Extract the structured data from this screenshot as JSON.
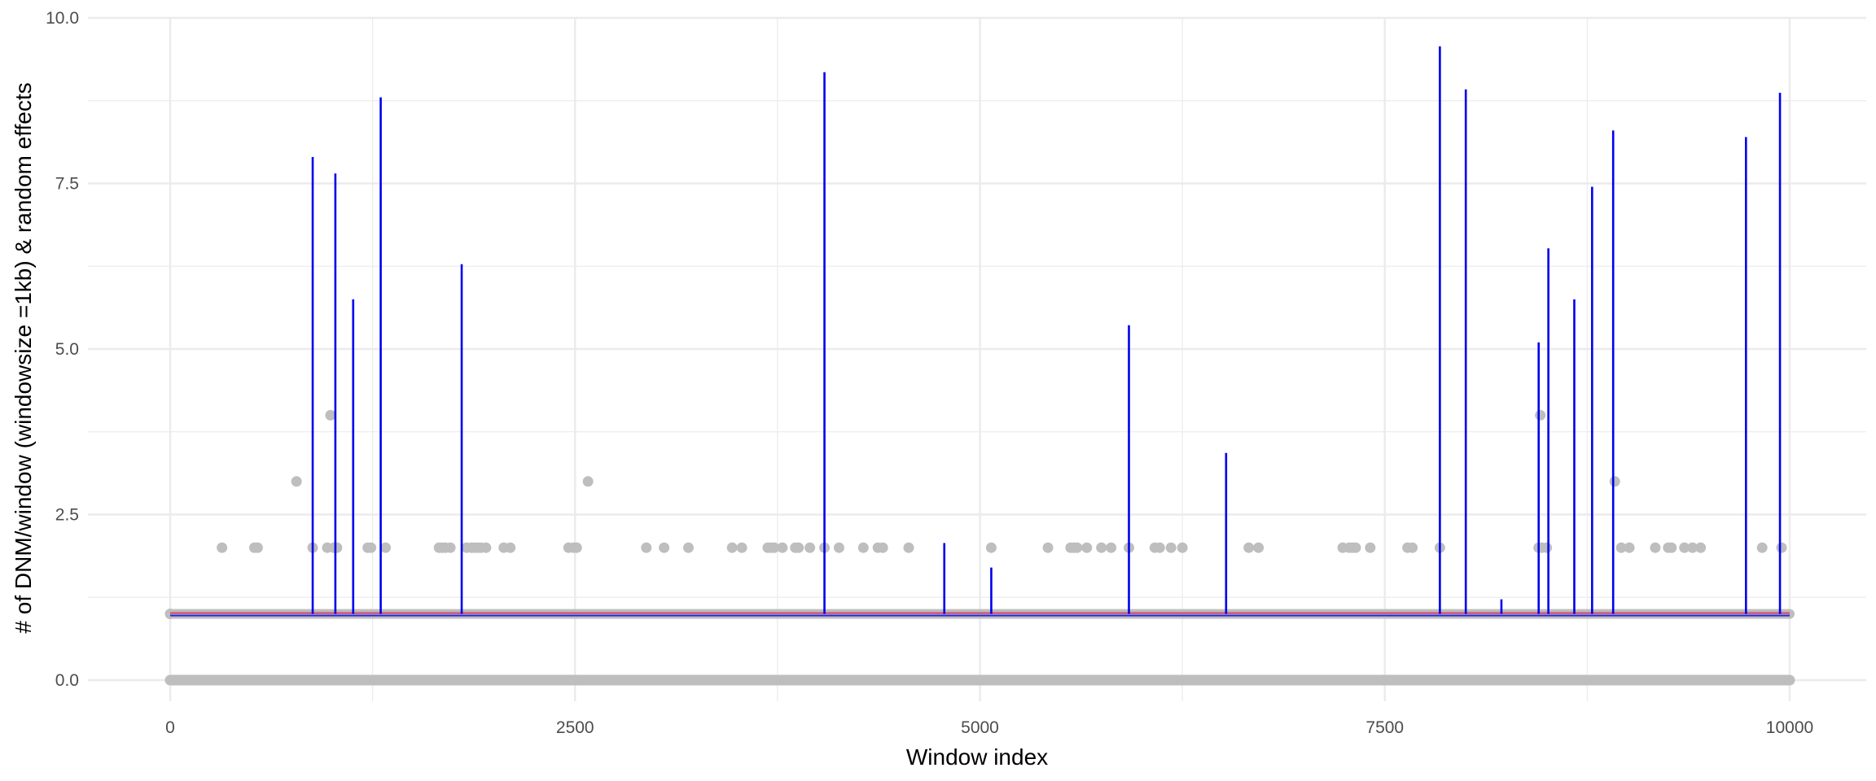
{
  "chart_data": {
    "type": "scatter",
    "title": "",
    "xlabel": "Window index",
    "ylabel": "# of DNM/window (windowsize =1kb) & random effects",
    "xlim": [
      -500,
      10500
    ],
    "ylim": [
      -0.45,
      10.0
    ],
    "x_ticks": [
      0,
      2500,
      5000,
      7500,
      10000
    ],
    "x_tick_labels": [
      "0",
      "2500",
      "5000",
      "7500",
      "10000"
    ],
    "y_ticks": [
      0,
      2.5,
      5,
      7.5,
      10
    ],
    "y_tick_labels": [
      "0.0",
      "2.5",
      "5.0",
      "7.5",
      "10.0"
    ],
    "grid": true,
    "legend": "none",
    "colors": {
      "points": "#bebebe",
      "random_effect_spikes": "#0000ee",
      "baseline_line": "#d62d5a",
      "grid": "#ebebeb",
      "background": "#ffffff"
    },
    "series": [
      {
        "type": "scatter",
        "note_values": "observed DNM counts per window (grey points); nonzero windows listed",
        "x": [
          0,
          320,
          520,
          540,
          780,
          880,
          970,
          990,
          1010,
          1030,
          1220,
          1240,
          1330,
          1660,
          1680,
          1700,
          1730,
          1830,
          1860,
          1880,
          1900,
          1920,
          1950,
          2060,
          2100,
          2460,
          2490,
          2510,
          2580,
          2940,
          3050,
          3200,
          3470,
          3530,
          3690,
          3710,
          3730,
          3780,
          3860,
          3880,
          3950,
          4040,
          4130,
          4280,
          4370,
          4400,
          4560,
          5070,
          5420,
          5560,
          5580,
          5600,
          5660,
          5750,
          5810,
          5920,
          6080,
          6110,
          6180,
          6250,
          6660,
          6720,
          7240,
          7280,
          7300,
          7320,
          7410,
          7640,
          7670,
          7840,
          8450,
          8470,
          8500,
          8460,
          8920,
          8960,
          9010,
          9170,
          9250,
          9270,
          9350,
          9400,
          9450,
          9830,
          9950
        ],
        "y": [
          1,
          2,
          2,
          2,
          3,
          2,
          2,
          4,
          2,
          2,
          2,
          2,
          2,
          2,
          2,
          2,
          2,
          2,
          2,
          2,
          2,
          2,
          2,
          2,
          2,
          2,
          2,
          2,
          3,
          2,
          2,
          2,
          2,
          2,
          2,
          2,
          2,
          2,
          2,
          2,
          2,
          2,
          2,
          2,
          2,
          2,
          2,
          2,
          2,
          2,
          2,
          2,
          2,
          2,
          2,
          2,
          2,
          2,
          2,
          2,
          2,
          2,
          2,
          2,
          2,
          2,
          2,
          2,
          2,
          2,
          2,
          2,
          2,
          4,
          3,
          2,
          2,
          2,
          2,
          2,
          2,
          2,
          2,
          2,
          2
        ]
      },
      {
        "type": "spikes",
        "note_values": "random effects estimate per window (blue vertical lines from baseline 1.0)",
        "x": [
          880,
          1020,
          1130,
          1300,
          1800,
          4040,
          4780,
          5070,
          5920,
          6520,
          7840,
          8000,
          8220,
          8450,
          8510,
          8670,
          8780,
          8910,
          9730,
          9940
        ],
        "y": [
          7.9,
          7.65,
          5.75,
          8.8,
          6.28,
          9.18,
          2.07,
          1.7,
          5.36,
          3.43,
          9.57,
          8.92,
          1.22,
          5.1,
          6.52,
          5.75,
          7.45,
          8.3,
          8.2,
          8.87
        ]
      }
    ],
    "baseline": 1.0,
    "zero_row": {
      "x_range": [
        0,
        10000
      ],
      "y": 0
    }
  }
}
